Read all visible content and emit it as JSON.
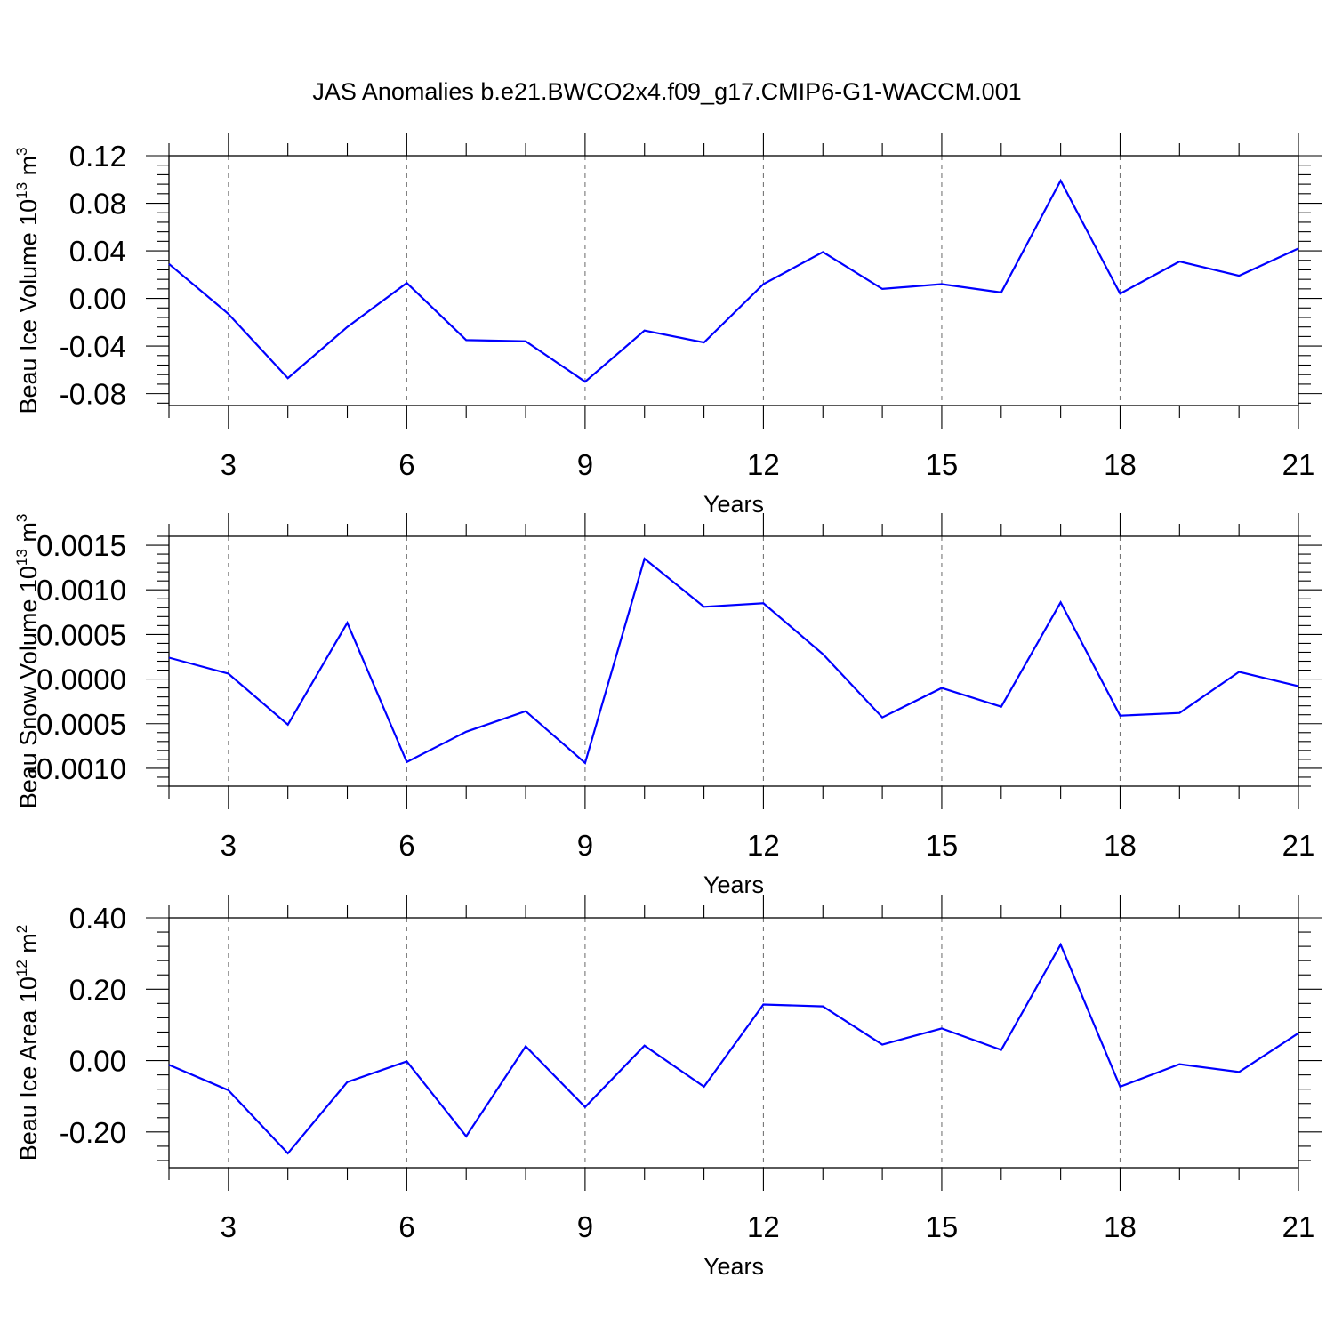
{
  "title": "JAS Anomalies b.e21.BWCO2x4.f09_g17.CMIP6-G1-WACCM.001",
  "line_color": "#0000ff",
  "chart_data": [
    {
      "type": "line",
      "ylabel_main": "Beau Ice Volume 10",
      "ylabel_exp": "13",
      "ylabel_unit": "m",
      "ylabel_unit_exp": "3",
      "xlabel": "Years",
      "xlim": [
        2,
        21
      ],
      "ylim": [
        -0.09,
        0.12
      ],
      "x_ticks": [
        3,
        6,
        9,
        12,
        15,
        18,
        21
      ],
      "y_ticks": [
        -0.08,
        -0.04,
        0.0,
        0.04,
        0.08,
        0.12
      ],
      "y_tick_labels": [
        "-0.08",
        "-0.04",
        "0.00",
        "0.04",
        "0.08",
        "0.12"
      ],
      "series": [
        {
          "name": "Beau Ice Volume",
          "x": [
            2,
            3,
            4,
            5,
            6,
            7,
            8,
            9,
            10,
            11,
            12,
            13,
            14,
            15,
            16,
            17,
            18,
            19,
            20,
            21
          ],
          "values": [
            0.029,
            -0.013,
            -0.067,
            -0.024,
            0.013,
            -0.035,
            -0.036,
            -0.07,
            -0.027,
            -0.037,
            0.012,
            0.039,
            0.008,
            0.012,
            0.005,
            0.099,
            0.004,
            0.031,
            0.019,
            0.042
          ]
        }
      ]
    },
    {
      "type": "line",
      "ylabel_main": "Beau Snow Volume 10",
      "ylabel_exp": "13",
      "ylabel_unit": "m",
      "ylabel_unit_exp": "3",
      "xlabel": "Years",
      "xlim": [
        2,
        21
      ],
      "ylim": [
        -0.0012,
        0.0016
      ],
      "x_ticks": [
        3,
        6,
        9,
        12,
        15,
        18,
        21
      ],
      "y_ticks": [
        -0.001,
        -0.0005,
        0,
        0.0005,
        0.001,
        0.0015
      ],
      "y_tick_labels": [
        "-0.0010",
        "-0.0005",
        "0.0000",
        "0.0005",
        "0.0010",
        "0.0015"
      ],
      "series": [
        {
          "name": "Beau Snow Volume",
          "x": [
            2,
            3,
            4,
            5,
            6,
            7,
            8,
            9,
            10,
            11,
            12,
            13,
            14,
            15,
            16,
            17,
            18,
            19,
            20,
            21
          ],
          "values": [
            0.00024,
            6e-05,
            -0.00051,
            0.00063,
            -0.00093,
            -0.00059,
            -0.00036,
            -0.00094,
            0.00135,
            0.00081,
            0.00085,
            0.00028,
            -0.00043,
            -0.0001,
            -0.00031,
            0.00086,
            -0.00041,
            -0.00038,
            8e-05,
            -8e-05
          ]
        }
      ]
    },
    {
      "type": "line",
      "ylabel_main": "Beau Ice Area 10",
      "ylabel_exp": "12",
      "ylabel_unit": "m",
      "ylabel_unit_exp": "2",
      "xlabel": "Years",
      "xlim": [
        2,
        21
      ],
      "ylim": [
        -0.3,
        0.4
      ],
      "x_ticks": [
        3,
        6,
        9,
        12,
        15,
        18,
        21
      ],
      "y_ticks": [
        -0.2,
        0.0,
        0.2,
        0.4
      ],
      "y_tick_labels": [
        "-0.20",
        "0.00",
        "0.20",
        "0.40"
      ],
      "series": [
        {
          "name": "Beau Ice Area",
          "x": [
            2,
            3,
            4,
            5,
            6,
            7,
            8,
            9,
            10,
            11,
            12,
            13,
            14,
            15,
            16,
            17,
            18,
            19,
            20,
            21
          ],
          "values": [
            -0.012,
            -0.083,
            -0.26,
            -0.06,
            -0.002,
            -0.212,
            0.04,
            -0.13,
            0.042,
            -0.073,
            0.157,
            0.152,
            0.045,
            0.09,
            0.03,
            0.325,
            -0.073,
            -0.01,
            -0.032,
            0.077
          ]
        }
      ]
    }
  ]
}
